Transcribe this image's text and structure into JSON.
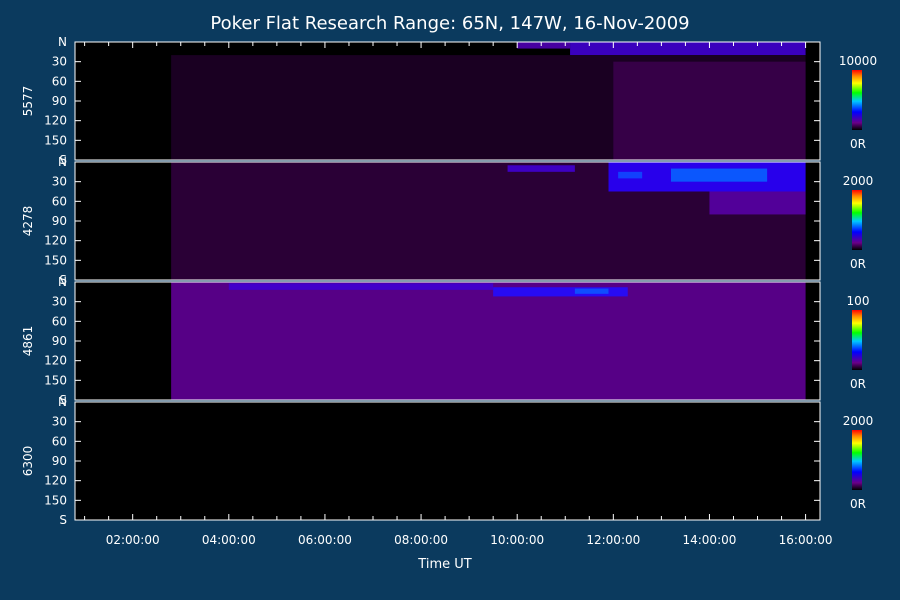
{
  "chart_data": {
    "type": "heatmap",
    "title": "Poker Flat Research Range: 65N, 147W, 16-Nov-2009",
    "xlabel": "Time UT",
    "x_tick_labels": [
      "02:00:00",
      "04:00:00",
      "06:00:00",
      "08:00:00",
      "10:00:00",
      "12:00:00",
      "14:00:00",
      "16:00:00"
    ],
    "x_tick_hours": [
      2,
      4,
      6,
      8,
      10,
      12,
      14,
      16
    ],
    "xlim_hours": [
      0.8,
      16.3
    ],
    "y_tick_labels": [
      "N",
      "30",
      "60",
      "90",
      "120",
      "150",
      "S"
    ],
    "y_tick_values": [
      0,
      30,
      60,
      90,
      120,
      150,
      180
    ],
    "ylim": [
      0,
      180
    ],
    "panels": [
      {
        "ylabel": "5577",
        "colorbar_max": "10000",
        "colorbar_min": "0R",
        "bands": [
          {
            "t0": 10.0,
            "t1": 11.1,
            "y0": 0,
            "y1": 10,
            "level": 0.25
          },
          {
            "t0": 11.1,
            "t1": 16.0,
            "y0": 0,
            "y1": 20,
            "level": 0.35
          },
          {
            "t0": 2.8,
            "t1": 16.0,
            "y0": 20,
            "y1": 180,
            "level": 0.05
          },
          {
            "t0": 12.0,
            "t1": 16.0,
            "y0": 30,
            "y1": 180,
            "level": 0.1
          }
        ]
      },
      {
        "ylabel": "4278",
        "colorbar_max": "2000",
        "colorbar_min": "0R",
        "bands": [
          {
            "t0": 2.8,
            "t1": 16.0,
            "y0": 0,
            "y1": 180,
            "level": 0.08
          },
          {
            "t0": 9.8,
            "t1": 11.2,
            "y0": 5,
            "y1": 15,
            "level": 0.35
          },
          {
            "t0": 11.9,
            "t1": 16.0,
            "y0": 0,
            "y1": 45,
            "level": 0.5
          },
          {
            "t0": 13.2,
            "t1": 15.2,
            "y0": 10,
            "y1": 30,
            "level": 0.9
          },
          {
            "t0": 12.1,
            "t1": 12.6,
            "y0": 15,
            "y1": 25,
            "level": 0.8
          },
          {
            "t0": 14.0,
            "t1": 16.0,
            "y0": 45,
            "y1": 80,
            "level": 0.2
          }
        ]
      },
      {
        "ylabel": "4861",
        "colorbar_max": "100",
        "colorbar_min": "0R",
        "bands": [
          {
            "t0": 2.8,
            "t1": 16.0,
            "y0": 0,
            "y1": 180,
            "level": 0.15
          },
          {
            "t0": 4.0,
            "t1": 9.5,
            "y0": 2,
            "y1": 12,
            "level": 0.35
          },
          {
            "t0": 9.5,
            "t1": 12.3,
            "y0": 8,
            "y1": 22,
            "level": 0.55
          },
          {
            "t0": 11.2,
            "t1": 11.9,
            "y0": 10,
            "y1": 18,
            "level": 0.85
          }
        ]
      },
      {
        "ylabel": "6300",
        "colorbar_max": "2000",
        "colorbar_min": "0R",
        "bands": []
      }
    ]
  }
}
